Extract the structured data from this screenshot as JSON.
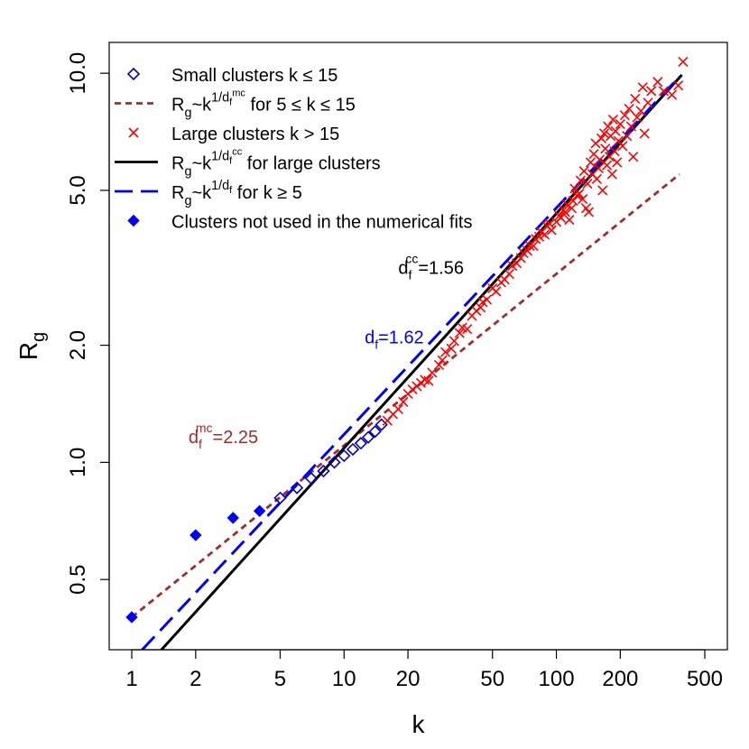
{
  "chart_data": {
    "type": "scatter",
    "x_scale": "log",
    "y_scale": "log",
    "xlabel": "k",
    "ylabel_base": "R",
    "ylabel_sub": "g",
    "xlim": [
      1,
      500
    ],
    "ylim": [
      0.33,
      12
    ],
    "x_ticks": [
      1,
      2,
      5,
      10,
      20,
      50,
      100,
      200,
      500
    ],
    "x_tick_labels": [
      "1",
      "2",
      "5",
      "10",
      "20",
      "50",
      "100",
      "200",
      "500"
    ],
    "y_ticks": [
      0.5,
      1.0,
      2.0,
      5.0,
      10.0
    ],
    "y_tick_labels": [
      "0.5",
      "1.0",
      "2.0",
      "5.0",
      "10.0"
    ],
    "legend_position": "top-left",
    "legend": [
      {
        "key": "small",
        "symbol": "open-diamond",
        "color": "#0000cc",
        "parts": [
          [
            "n",
            "Small clusters k ≤ 15"
          ]
        ]
      },
      {
        "key": "fit_mc",
        "symbol": "dashed-line",
        "color": "#a52a2a",
        "parts": [
          [
            "n",
            "R"
          ],
          [
            "sub",
            "g"
          ],
          [
            "n",
            "~k"
          ],
          [
            "sup",
            "1/d"
          ],
          [
            "supsub",
            "f"
          ],
          [
            "supsup",
            "mc"
          ],
          [
            "n",
            " for 5 ≤ k ≤ 15"
          ]
        ]
      },
      {
        "key": "large",
        "symbol": "x",
        "color": "#ff0000",
        "parts": [
          [
            "n",
            "Large clusters k > 15"
          ]
        ]
      },
      {
        "key": "fit_cc",
        "symbol": "solid-line",
        "color": "#000000",
        "parts": [
          [
            "n",
            "R"
          ],
          [
            "sub",
            "g"
          ],
          [
            "n",
            "~k"
          ],
          [
            "sup",
            "1/d"
          ],
          [
            "supsub",
            "f"
          ],
          [
            "supsup",
            "cc"
          ],
          [
            "n",
            " for large clusters"
          ]
        ]
      },
      {
        "key": "fit_f",
        "symbol": "long-dash-line",
        "color": "#0000ff",
        "parts": [
          [
            "n",
            "R"
          ],
          [
            "sub",
            "g"
          ],
          [
            "n",
            "~k"
          ],
          [
            "sup",
            "1/d"
          ],
          [
            "supsub",
            "f"
          ],
          [
            "n",
            " for k ≥ 5"
          ]
        ]
      },
      {
        "key": "unused",
        "symbol": "filled-diamond",
        "color": "#0000ff",
        "parts": [
          [
            "n",
            "Clusters not used in the numerical fits"
          ]
        ]
      }
    ],
    "annotations": [
      {
        "key": "mc",
        "base": "d",
        "sub": "f",
        "sup": "mc",
        "value": "=2.25",
        "color": "#a52a2a",
        "x": 1.85,
        "y": 1.12
      },
      {
        "key": "cc",
        "base": "d",
        "sub": "f",
        "sup": "cc",
        "value": "=1.56",
        "color": "#000000",
        "x": 18.0,
        "y": 3.05
      },
      {
        "key": "f",
        "base": "d",
        "sub": "f",
        "sup": "",
        "value": "=1.62",
        "color": "#0000ff",
        "x": 12.5,
        "y": 2.02
      }
    ],
    "fit_lines": [
      {
        "key": "fit_mc",
        "color": "#a52a2a",
        "dash": "7,5",
        "points": [
          [
            1,
            0.4
          ],
          [
            380,
            5.5
          ]
        ]
      },
      {
        "key": "fit_cc",
        "color": "#000000",
        "dash": "",
        "points": [
          [
            1.38,
            0.33
          ],
          [
            390,
            9.9
          ]
        ]
      },
      {
        "key": "fit_f",
        "color": "#0000ff",
        "dash": "20,9",
        "points": [
          [
            1.12,
            0.33
          ],
          [
            380,
            9.8
          ]
        ]
      }
    ],
    "series": [
      {
        "name": "Clusters not used in the numerical fits",
        "marker": "filled-diamond",
        "color": "#0000ff",
        "points": [
          [
            1,
            0.4
          ],
          [
            2,
            0.65
          ],
          [
            3,
            0.72
          ],
          [
            4,
            0.75
          ]
        ]
      },
      {
        "name": "Small clusters k ≤ 15",
        "marker": "open-diamond",
        "color": "#0000cc",
        "points": [
          [
            5,
            0.81
          ],
          [
            6,
            0.86
          ],
          [
            7,
            0.91
          ],
          [
            8,
            0.95
          ],
          [
            9,
            1.0
          ],
          [
            10,
            1.04
          ],
          [
            11,
            1.08
          ],
          [
            12,
            1.12
          ],
          [
            13,
            1.16
          ],
          [
            14,
            1.2
          ],
          [
            15,
            1.25
          ]
        ]
      },
      {
        "name": "Large clusters k > 15",
        "marker": "x",
        "color": "#ff0000",
        "points": [
          [
            16,
            1.28
          ],
          [
            17,
            1.33
          ],
          [
            18,
            1.37
          ],
          [
            19,
            1.43
          ],
          [
            20,
            1.5
          ],
          [
            21,
            1.54
          ],
          [
            22,
            1.57
          ],
          [
            23,
            1.6
          ],
          [
            24,
            1.63
          ],
          [
            25,
            1.62
          ],
          [
            26,
            1.7
          ],
          [
            28,
            1.78
          ],
          [
            29,
            1.83
          ],
          [
            30,
            1.92
          ],
          [
            32,
            1.96
          ],
          [
            33,
            2.05
          ],
          [
            35,
            2.15
          ],
          [
            36,
            2.22
          ],
          [
            38,
            2.2
          ],
          [
            40,
            2.38
          ],
          [
            42,
            2.45
          ],
          [
            44,
            2.5
          ],
          [
            45,
            2.58
          ],
          [
            47,
            2.62
          ],
          [
            50,
            2.8
          ],
          [
            52,
            2.75
          ],
          [
            55,
            2.9
          ],
          [
            57,
            2.95
          ],
          [
            60,
            3.05
          ],
          [
            62,
            3.2
          ],
          [
            65,
            3.25
          ],
          [
            68,
            3.35
          ],
          [
            70,
            3.45
          ],
          [
            73,
            3.5
          ],
          [
            75,
            3.6
          ],
          [
            78,
            3.6
          ],
          [
            80,
            3.75
          ],
          [
            83,
            3.8
          ],
          [
            85,
            3.9
          ],
          [
            88,
            3.85
          ],
          [
            90,
            4.05
          ],
          [
            93,
            4.1
          ],
          [
            95,
            3.95
          ],
          [
            100,
            4.15
          ],
          [
            103,
            4.3
          ],
          [
            105,
            4.25
          ],
          [
            108,
            4.45
          ],
          [
            110,
            4.4
          ],
          [
            112,
            4.6
          ],
          [
            115,
            4.2
          ],
          [
            118,
            4.5
          ],
          [
            120,
            4.7
          ],
          [
            122,
            5.05
          ],
          [
            125,
            4.85
          ],
          [
            128,
            4.9
          ],
          [
            130,
            5.3
          ],
          [
            133,
            4.75
          ],
          [
            135,
            5.6
          ],
          [
            138,
            4.5
          ],
          [
            140,
            5.2
          ],
          [
            142,
            4.4
          ],
          [
            145,
            5.9
          ],
          [
            148,
            5.5
          ],
          [
            150,
            6.2
          ],
          [
            153,
            6.6
          ],
          [
            155,
            5.35
          ],
          [
            158,
            5.7
          ],
          [
            160,
            6.0
          ],
          [
            163,
            6.8
          ],
          [
            165,
            5.0
          ],
          [
            168,
            7.0
          ],
          [
            170,
            6.4
          ],
          [
            173,
            5.8
          ],
          [
            175,
            7.3
          ],
          [
            178,
            6.1
          ],
          [
            180,
            6.9
          ],
          [
            183,
            5.5
          ],
          [
            185,
            7.6
          ],
          [
            188,
            6.3
          ],
          [
            190,
            7.1
          ],
          [
            193,
            5.9
          ],
          [
            196,
            6.7
          ],
          [
            200,
            7.4
          ],
          [
            205,
            6.5
          ],
          [
            210,
            7.8
          ],
          [
            215,
            6.9
          ],
          [
            220,
            8.1
          ],
          [
            225,
            7.3
          ],
          [
            230,
            6.1
          ],
          [
            235,
            8.6
          ],
          [
            240,
            7.7
          ],
          [
            250,
            8.0
          ],
          [
            255,
            9.2
          ],
          [
            260,
            7.0
          ],
          [
            270,
            8.4
          ],
          [
            280,
            9.0
          ],
          [
            300,
            9.5
          ],
          [
            320,
            9.0
          ],
          [
            350,
            8.8
          ],
          [
            375,
            9.3
          ],
          [
            395,
            10.7
          ]
        ]
      }
    ]
  }
}
